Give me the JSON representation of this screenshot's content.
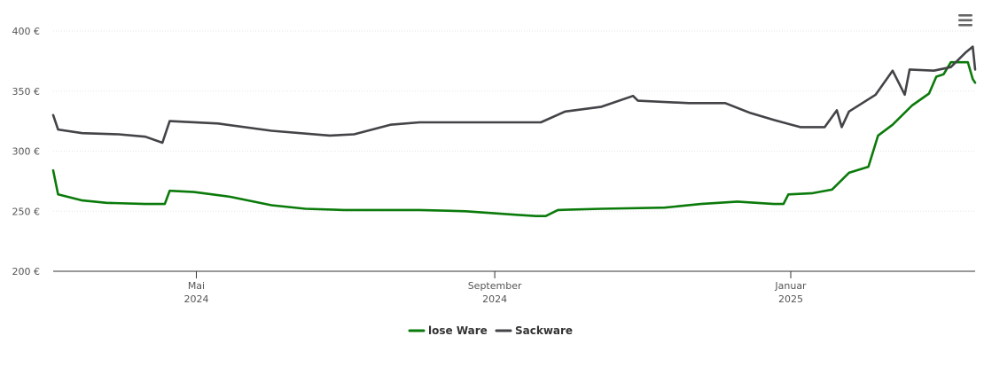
{
  "chart_data": {
    "type": "line",
    "title": "",
    "xlabel": "",
    "ylabel": "",
    "xlim": [
      "2024-03-03",
      "2025-03-18"
    ],
    "ylim": [
      200,
      400
    ],
    "y_ticks": [
      {
        "value": 200,
        "label": "200 €"
      },
      {
        "value": 250,
        "label": "250 €"
      },
      {
        "value": 300,
        "label": "300 €"
      },
      {
        "value": 350,
        "label": "350 €"
      },
      {
        "value": 400,
        "label": "400 €"
      }
    ],
    "x_ticks": [
      {
        "date": "2024-05-01",
        "line1": "Mai",
        "line2": "2024"
      },
      {
        "date": "2024-09-01",
        "line1": "September",
        "line2": "2024"
      },
      {
        "date": "2025-01-01",
        "line1": "Januar",
        "line2": "2025"
      }
    ],
    "grid": true,
    "legend": "bottom-center",
    "series": [
      {
        "name": "lose Ware",
        "color": "#0a7a0a",
        "points": [
          [
            "2024-03-03",
            284
          ],
          [
            "2024-03-05",
            264
          ],
          [
            "2024-03-15",
            259
          ],
          [
            "2024-03-25",
            257
          ],
          [
            "2024-04-10",
            256
          ],
          [
            "2024-04-18",
            256
          ],
          [
            "2024-04-20",
            267
          ],
          [
            "2024-04-30",
            266
          ],
          [
            "2024-05-15",
            262
          ],
          [
            "2024-06-01",
            255
          ],
          [
            "2024-06-15",
            252
          ],
          [
            "2024-07-01",
            251
          ],
          [
            "2024-08-01",
            251
          ],
          [
            "2024-08-20",
            250
          ],
          [
            "2024-09-10",
            247
          ],
          [
            "2024-09-18",
            246
          ],
          [
            "2024-09-22",
            246
          ],
          [
            "2024-09-27",
            251
          ],
          [
            "2024-10-15",
            252
          ],
          [
            "2024-11-10",
            253
          ],
          [
            "2024-11-25",
            256
          ],
          [
            "2024-12-10",
            258
          ],
          [
            "2024-12-25",
            256
          ],
          [
            "2024-12-29",
            256
          ],
          [
            "2024-12-31",
            264
          ],
          [
            "2025-01-10",
            265
          ],
          [
            "2025-01-18",
            268
          ],
          [
            "2025-01-25",
            282
          ],
          [
            "2025-02-02",
            287
          ],
          [
            "2025-02-06",
            313
          ],
          [
            "2025-02-12",
            322
          ],
          [
            "2025-02-20",
            338
          ],
          [
            "2025-02-27",
            348
          ],
          [
            "2025-03-02",
            362
          ],
          [
            "2025-03-05",
            364
          ],
          [
            "2025-03-08",
            374
          ],
          [
            "2025-03-12",
            374
          ],
          [
            "2025-03-15",
            374
          ],
          [
            "2025-03-17",
            360
          ],
          [
            "2025-03-18",
            357
          ]
        ]
      },
      {
        "name": "Sackware",
        "color": "#434348",
        "points": [
          [
            "2024-03-03",
            330
          ],
          [
            "2024-03-05",
            318
          ],
          [
            "2024-03-15",
            315
          ],
          [
            "2024-03-30",
            314
          ],
          [
            "2024-04-10",
            312
          ],
          [
            "2024-04-17",
            307
          ],
          [
            "2024-04-20",
            325
          ],
          [
            "2024-05-10",
            323
          ],
          [
            "2024-06-01",
            317
          ],
          [
            "2024-06-25",
            313
          ],
          [
            "2024-07-05",
            314
          ],
          [
            "2024-07-20",
            322
          ],
          [
            "2024-08-01",
            324
          ],
          [
            "2024-09-20",
            324
          ],
          [
            "2024-09-30",
            333
          ],
          [
            "2024-10-15",
            337
          ],
          [
            "2024-10-28",
            346
          ],
          [
            "2024-10-30",
            342
          ],
          [
            "2024-11-20",
            340
          ],
          [
            "2024-12-05",
            340
          ],
          [
            "2024-12-15",
            332
          ],
          [
            "2024-12-25",
            326
          ],
          [
            "2025-01-05",
            320
          ],
          [
            "2025-01-15",
            320
          ],
          [
            "2025-01-20",
            334
          ],
          [
            "2025-01-22",
            320
          ],
          [
            "2025-01-25",
            333
          ],
          [
            "2025-02-05",
            347
          ],
          [
            "2025-02-12",
            367
          ],
          [
            "2025-02-17",
            347
          ],
          [
            "2025-02-19",
            368
          ],
          [
            "2025-03-01",
            367
          ],
          [
            "2025-03-08",
            370
          ],
          [
            "2025-03-14",
            382
          ],
          [
            "2025-03-17",
            387
          ],
          [
            "2025-03-18",
            368
          ]
        ]
      }
    ]
  },
  "toolbar": {
    "menu_icon": "hamburger-menu-icon"
  }
}
